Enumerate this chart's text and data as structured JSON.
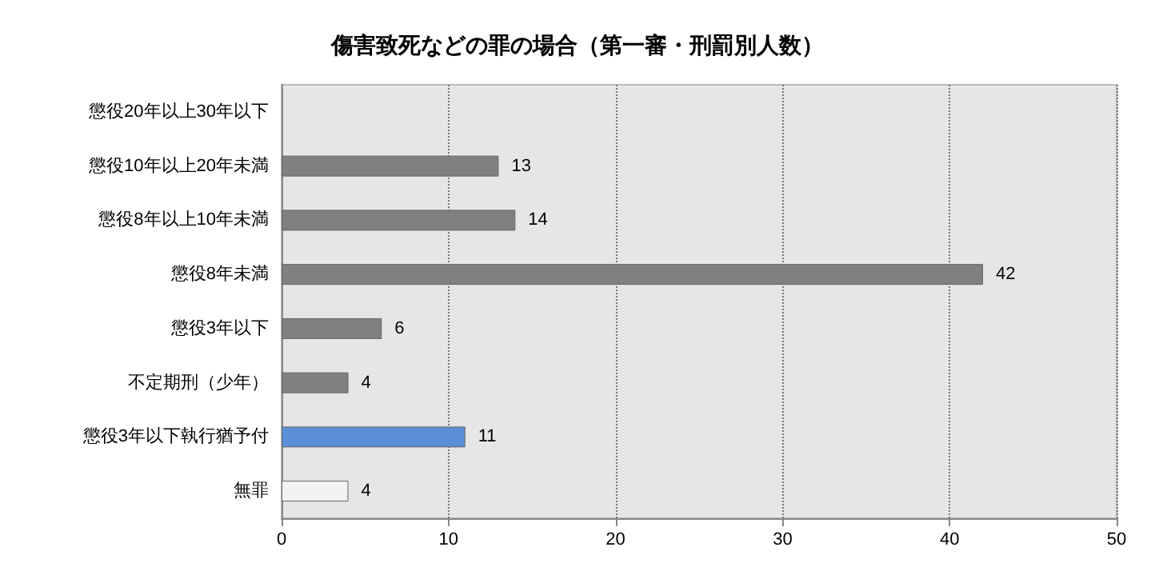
{
  "chart_data": {
    "type": "bar",
    "orientation": "horizontal",
    "title": "傷害致死などの罪の場合（第一審・刑罰別人数）",
    "categories": [
      "懲役20年以上30年以下",
      "懲役10年以上20年未満",
      "懲役8年以上10年未満",
      "懲役8年未満",
      "懲役3年以下",
      "不定期刑（少年）",
      "懲役3年以下執行猶予付",
      "無罪"
    ],
    "values": [
      0,
      13,
      14,
      42,
      6,
      4,
      11,
      4
    ],
    "value_labels": [
      null,
      "13",
      "14",
      "42",
      "6",
      "4",
      "11",
      "4"
    ],
    "colors": [
      "#808080",
      "#808080",
      "#808080",
      "#808080",
      "#808080",
      "#808080",
      "#5b8fd6",
      "#f2f2f2"
    ],
    "xlim": [
      0,
      50
    ],
    "xticks": [
      0,
      10,
      20,
      30,
      40,
      50
    ],
    "grid": "x"
  }
}
